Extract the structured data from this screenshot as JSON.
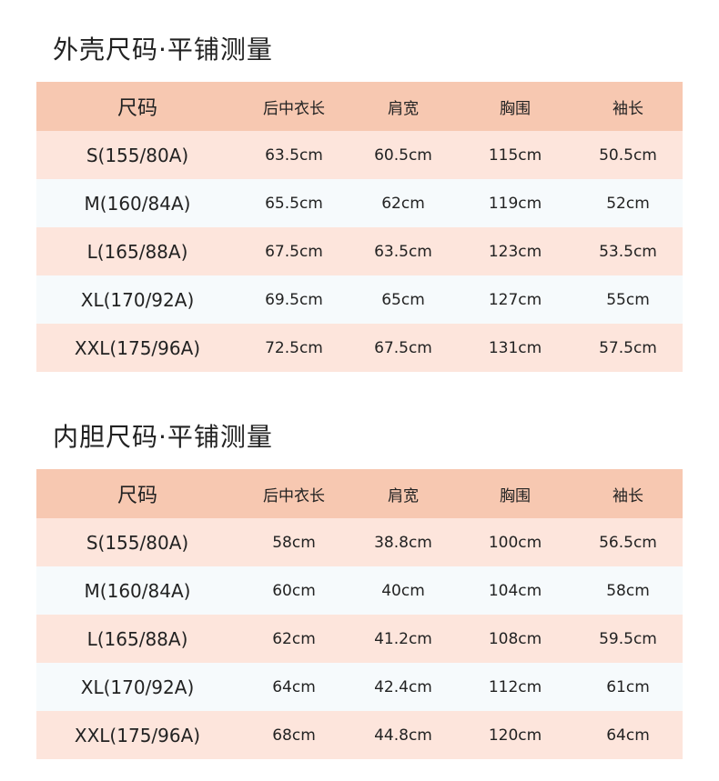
{
  "outer": {
    "title": "外壳尺码·平铺测量",
    "headers": [
      "尺码",
      "后中衣长",
      "肩宽",
      "胸围",
      "袖长"
    ],
    "rows": [
      [
        "S(155/80A)",
        "63.5cm",
        "60.5cm",
        "115cm",
        "50.5cm"
      ],
      [
        "M(160/84A)",
        "65.5cm",
        "62cm",
        "119cm",
        "52cm"
      ],
      [
        "L(165/88A)",
        "67.5cm",
        "63.5cm",
        "123cm",
        "53.5cm"
      ],
      [
        "XL(170/92A)",
        "69.5cm",
        "65cm",
        "127cm",
        "55cm"
      ],
      [
        "XXL(175/96A)",
        "72.5cm",
        "67.5cm",
        "131cm",
        "57.5cm"
      ]
    ]
  },
  "inner": {
    "title": "内胆尺码·平铺测量",
    "headers": [
      "尺码",
      "后中衣长",
      "肩宽",
      "胸围",
      "袖长"
    ],
    "rows": [
      [
        "S(155/80A)",
        "58cm",
        "38.8cm",
        "100cm",
        "56.5cm"
      ],
      [
        "M(160/84A)",
        "60cm",
        "40cm",
        "104cm",
        "58cm"
      ],
      [
        "L(165/88A)",
        "62cm",
        "41.2cm",
        "108cm",
        "59.5cm"
      ],
      [
        "XL(170/92A)",
        "64cm",
        "42.4cm",
        "112cm",
        "61cm"
      ],
      [
        "XXL(175/96A)",
        "68cm",
        "44.8cm",
        "120cm",
        "64cm"
      ]
    ]
  },
  "colors": {
    "header_bg": "#f7c8b1",
    "row_odd_bg": "#fde5dc",
    "row_even_bg": "#f6fafc",
    "text": "#222222"
  }
}
